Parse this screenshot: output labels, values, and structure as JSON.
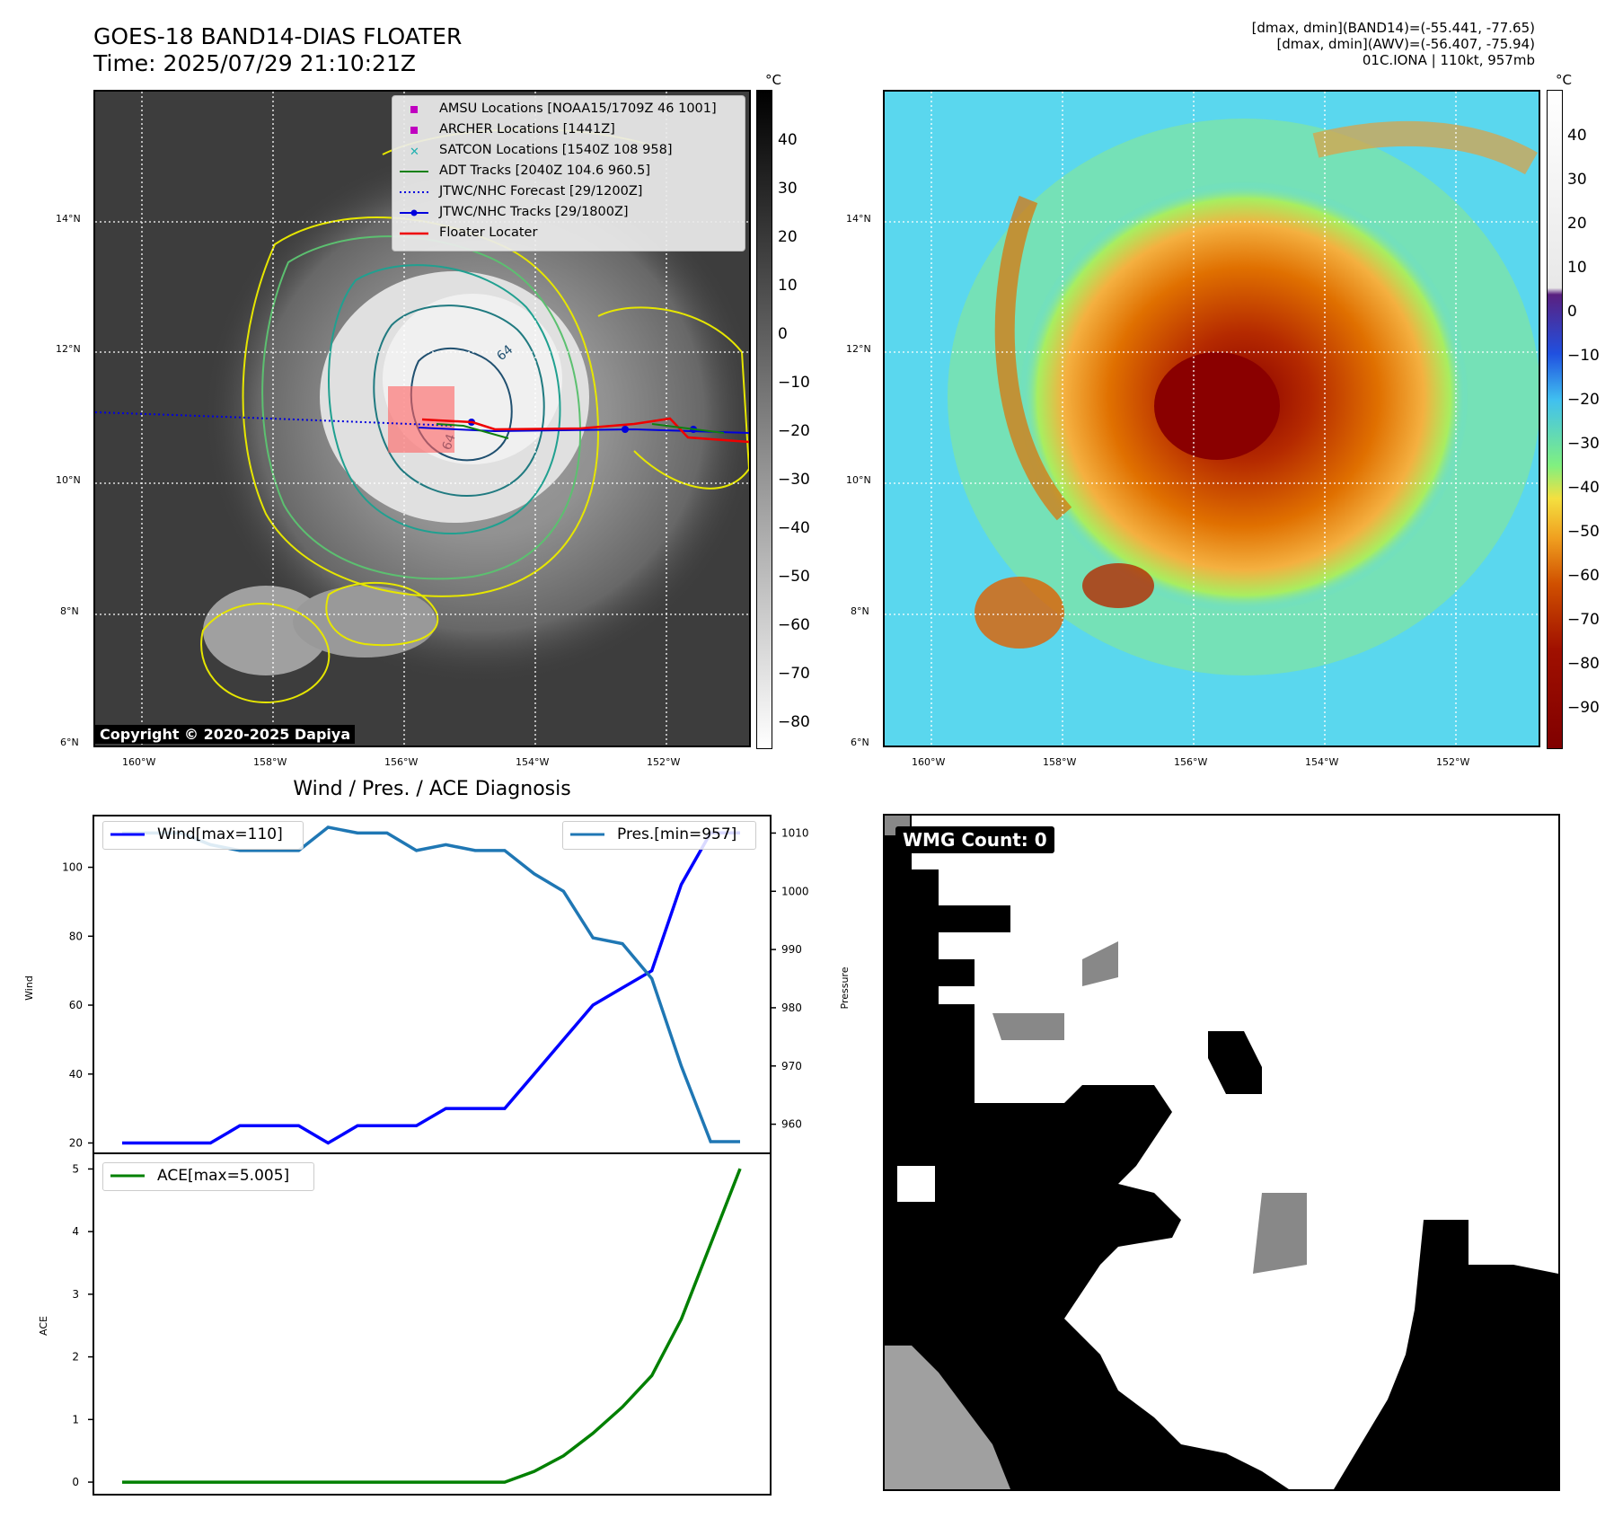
{
  "header": {
    "title_line1": "GOES-18 BAND14-DIAS FLOATER",
    "title_line2": "Time: 2025/07/29 21:10:21Z",
    "info_line1": "[dmax, dmin](BAND14)=(-55.441, -77.65)",
    "info_line2": "[dmax, dmin](AWV)=(-56.407, -75.94)",
    "info_line3": "01C.IONA | 110kt, 957mb"
  },
  "maps": {
    "lat_labels": [
      "14°N",
      "12°N",
      "10°N",
      "8°N",
      "6°N"
    ],
    "lon_labels": [
      "160°W",
      "158°W",
      "156°W",
      "154°W",
      "152°W"
    ],
    "copyright": "Copyright © 2020-2025 Dapiya",
    "colorbar_unit": "°C",
    "left_colorbar_ticks": [
      "40",
      "30",
      "20",
      "10",
      "0",
      "−10",
      "−20",
      "−30",
      "−40",
      "−50",
      "−60",
      "−70",
      "−80"
    ],
    "right_colorbar_ticks": [
      "40",
      "30",
      "20",
      "10",
      "0",
      "−10",
      "−20",
      "−30",
      "−40",
      "−50",
      "−60",
      "−70",
      "−80",
      "−90"
    ],
    "contour_label": "64",
    "legend": [
      {
        "label": "AMSU Locations [NOAA15/1709Z 46 1001]",
        "color": "#c000c0",
        "marker": "square"
      },
      {
        "label": "ARCHER Locations [1441Z]",
        "color": "#c000c0",
        "marker": "square"
      },
      {
        "label": "SATCON Locations [1540Z 108 958]",
        "color": "#20b0b0",
        "marker": "x"
      },
      {
        "label": "ADT Tracks [2040Z 104.6 960.5]",
        "color": "#108010",
        "marker": "line"
      },
      {
        "label": "JTWC/NHC Forecast [29/1200Z]",
        "color": "#0000dd",
        "marker": "dotted"
      },
      {
        "label": "JTWC/NHC Tracks [29/1800Z]",
        "color": "#0000dd",
        "marker": "line-dot"
      },
      {
        "label": "Floater Locater",
        "color": "#ee0000",
        "marker": "line"
      }
    ]
  },
  "diagnosis": {
    "title": "Wind / Pres. / ACE Diagnosis",
    "wind_label": "Wind",
    "pressure_label": "Pressure",
    "ace_label": "ACE",
    "wind_legend": "Wind[max=110]",
    "pres_legend": "Pres.[min=957]",
    "ace_legend": "ACE[max=5.005]",
    "wind_ticks": [
      "100",
      "80",
      "60",
      "40",
      "20"
    ],
    "pres_ticks": [
      "1010",
      "1000",
      "990",
      "980",
      "970",
      "960"
    ],
    "ace_ticks": [
      "5",
      "4",
      "3",
      "2",
      "1",
      "0"
    ]
  },
  "wmg": {
    "label": "WMG Count: 0"
  },
  "chart_data": [
    {
      "type": "line",
      "title": "Wind / Pres. / ACE Diagnosis",
      "x": [
        0,
        1,
        2,
        3,
        4,
        5,
        6,
        7,
        8,
        9,
        10,
        11,
        12,
        13,
        14,
        15,
        16,
        17,
        18,
        19,
        20,
        21
      ],
      "ylim": [
        17,
        115
      ],
      "y2lim": [
        955,
        1013
      ],
      "series": [
        {
          "name": "Wind[max=110]",
          "axis": "left",
          "color": "#0000ff",
          "values": [
            20,
            20,
            20,
            20,
            25,
            25,
            25,
            20,
            25,
            25,
            25,
            30,
            30,
            30,
            40,
            50,
            60,
            65,
            70,
            95,
            110,
            110
          ]
        },
        {
          "name": "Pres.[min=957]",
          "axis": "right",
          "color": "#1f77b4",
          "values": [
            1010,
            1010,
            1010,
            1008,
            1007,
            1007,
            1007,
            1011,
            1010,
            1010,
            1007,
            1008,
            1007,
            1007,
            1003,
            1000,
            992,
            991,
            985,
            970,
            957,
            957
          ]
        }
      ]
    },
    {
      "type": "line",
      "x": [
        0,
        1,
        2,
        3,
        4,
        5,
        6,
        7,
        8,
        9,
        10,
        11,
        12,
        13,
        14,
        15,
        16,
        17,
        18,
        19,
        20,
        21
      ],
      "ylim": [
        -0.2,
        5.25
      ],
      "series": [
        {
          "name": "ACE[max=5.005]",
          "color": "#008000",
          "values": [
            0,
            0,
            0,
            0,
            0,
            0,
            0,
            0,
            0,
            0,
            0,
            0,
            0,
            0,
            0.17,
            0.42,
            0.78,
            1.2,
            1.7,
            2.6,
            3.8,
            5.005
          ]
        }
      ]
    }
  ]
}
